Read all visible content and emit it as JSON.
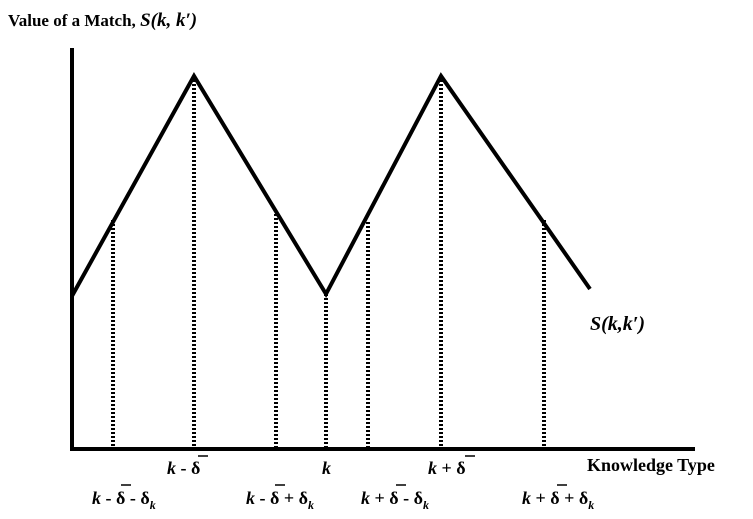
{
  "diagram": {
    "y_axis_title": {
      "prefix": "Value of a Match, ",
      "func": "S",
      "args": "(k, k′)"
    },
    "x_axis_title": "Knowledge Type",
    "curve_label": {
      "func": "S",
      "args": "(k,k′)"
    },
    "ticks_top": [
      {
        "k": "k",
        "op": " - ",
        "delta": "δ",
        "bar": true
      },
      {
        "k": "k",
        "op": "",
        "delta": "",
        "bar": false
      },
      {
        "k": "k",
        "op": " + ",
        "delta": "δ",
        "bar": true
      }
    ],
    "ticks_bottom": [
      {
        "k": "k",
        "op1": " - ",
        "delta": "δ",
        "op2": " - ",
        "dk": "δ",
        "sub": "k"
      },
      {
        "k": "k",
        "op1": " - ",
        "delta": "δ",
        "op2": " + ",
        "dk": "δ",
        "sub": "k"
      },
      {
        "k": "k",
        "op1": " + ",
        "delta": "δ",
        "op2": " - ",
        "dk": "δ",
        "sub": "k"
      },
      {
        "k": "k",
        "op1": " + ",
        "delta": "δ",
        "op2": " +  ",
        "dk": "δ",
        "sub": "k"
      }
    ]
  }
}
